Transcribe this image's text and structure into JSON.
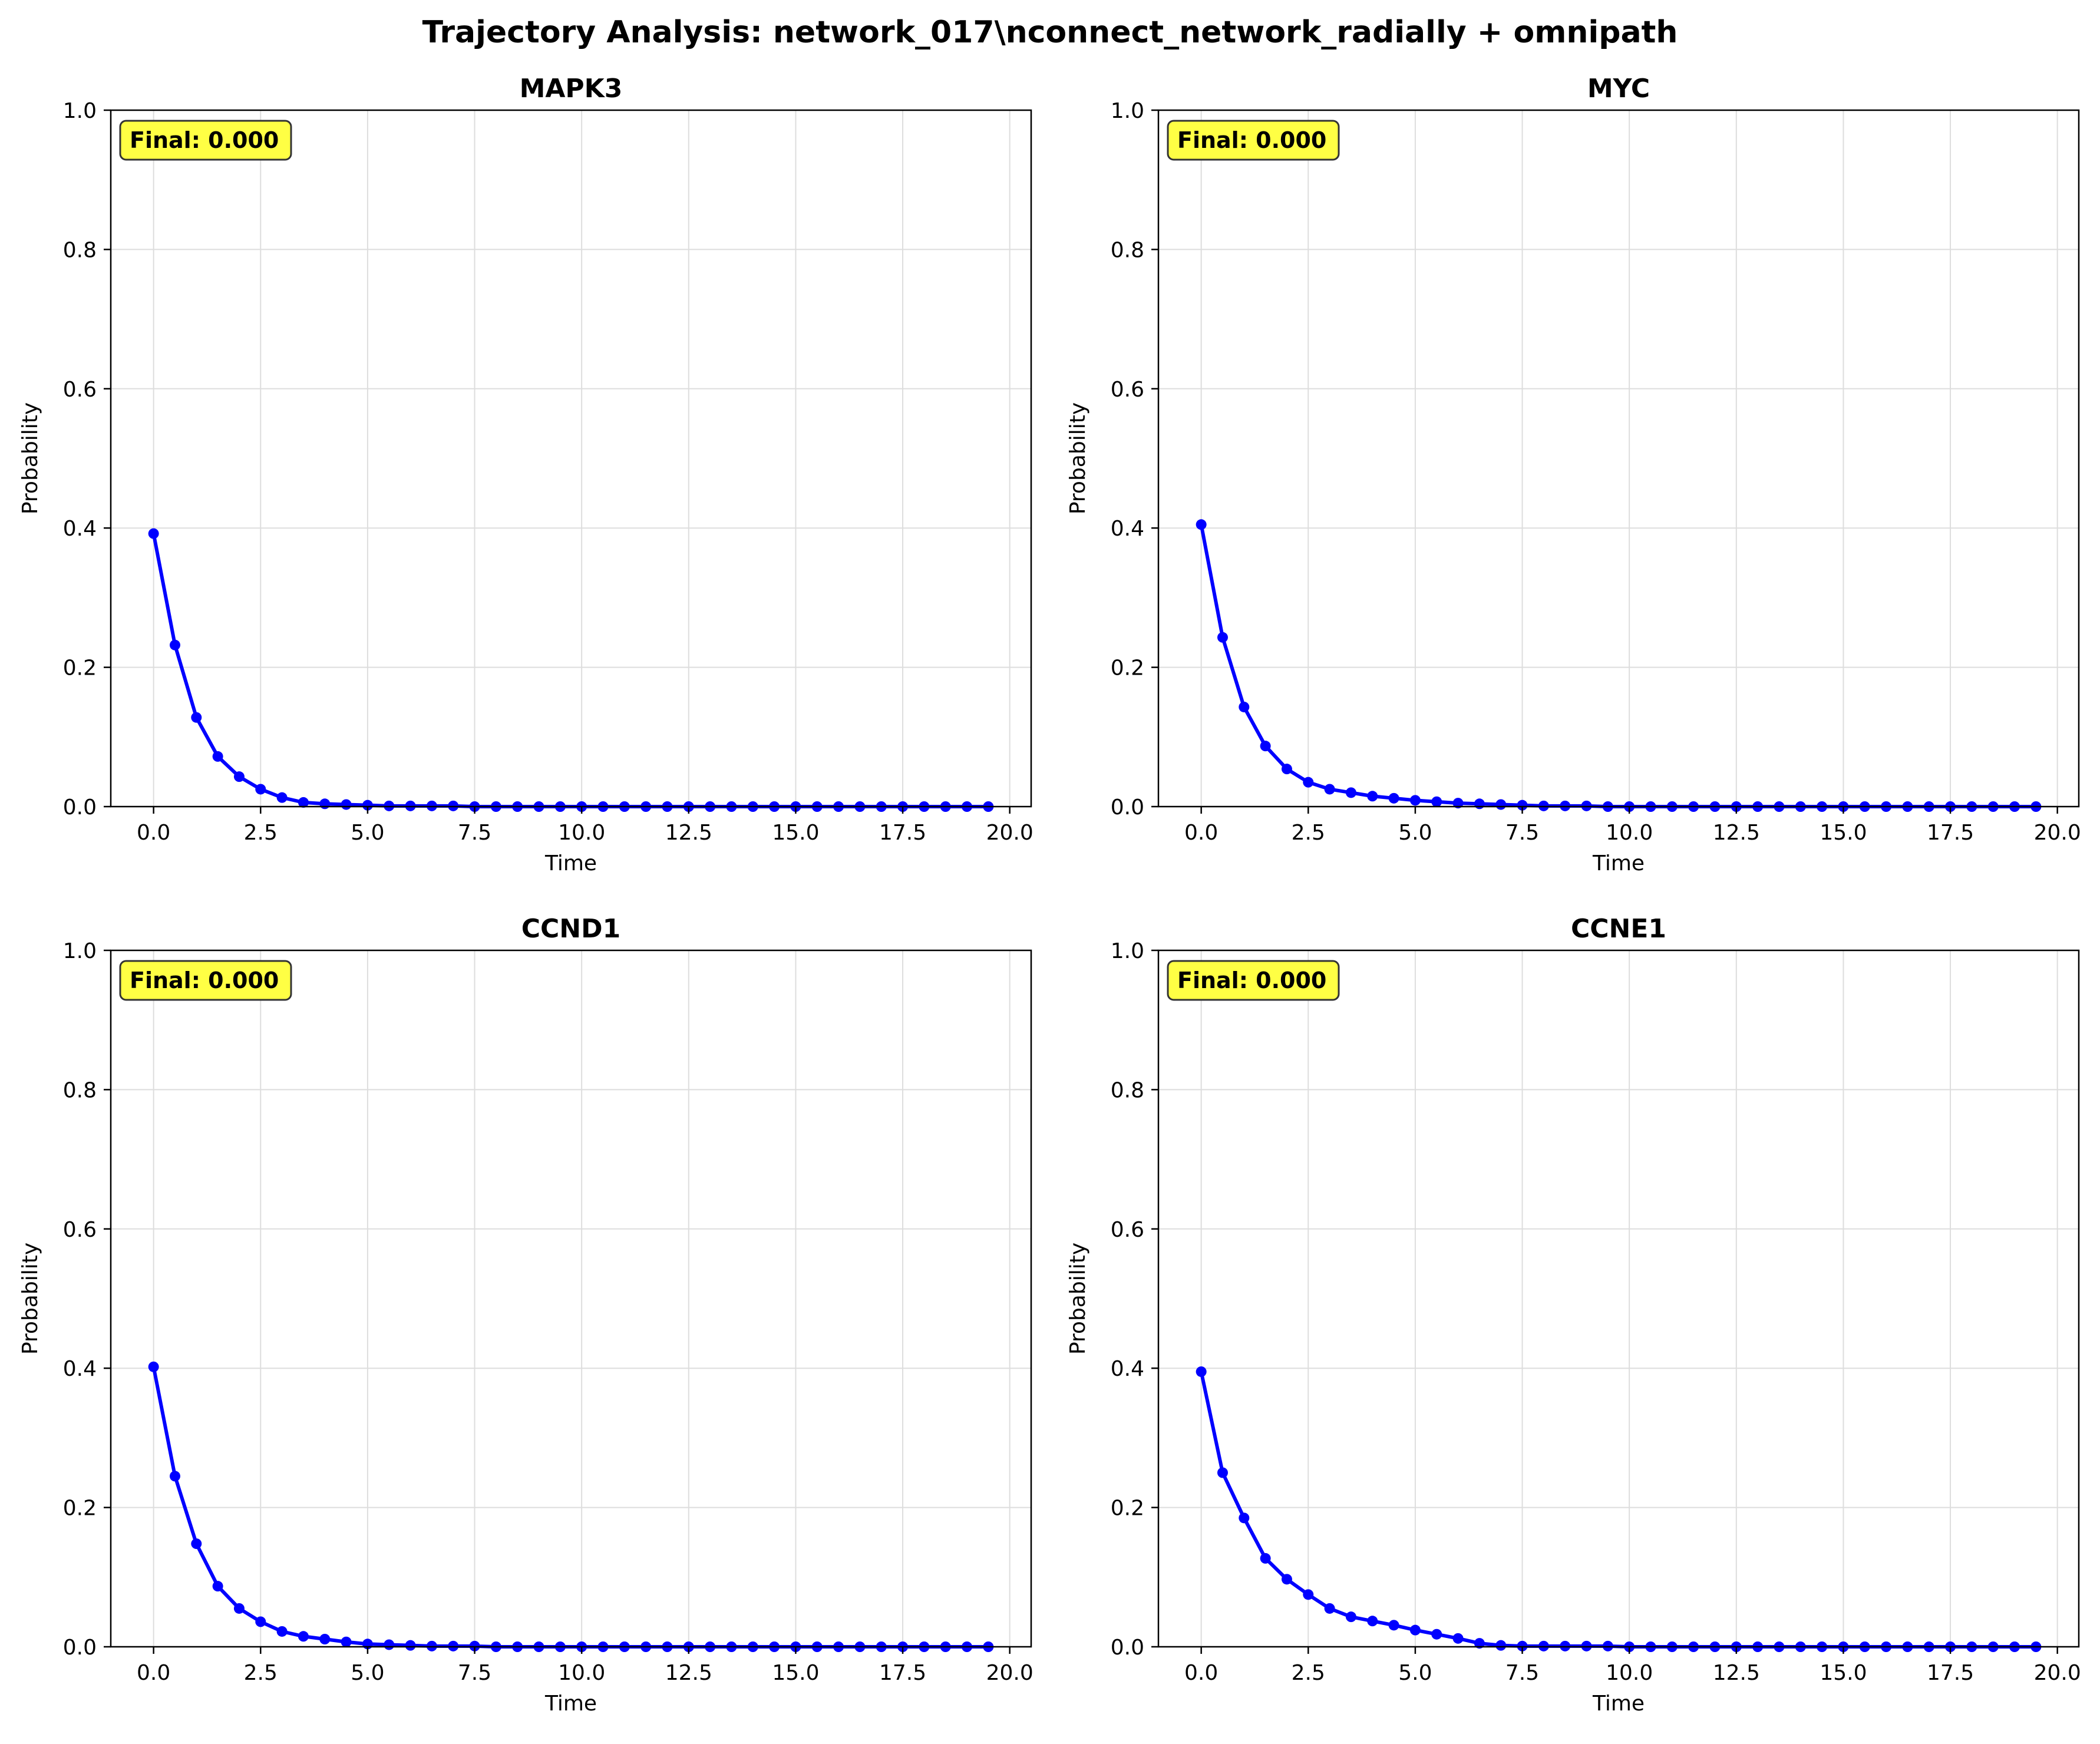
{
  "figure": {
    "title": "Trajectory Analysis: network_017\\nconnect_network_radially + omnipath"
  },
  "chart_data": [
    {
      "type": "line",
      "title": "MAPK3",
      "xlabel": "Time",
      "ylabel": "Probability",
      "xlim": [
        -1.0,
        20.5
      ],
      "ylim": [
        0,
        1
      ],
      "xticks": [
        "0.0",
        "2.5",
        "5.0",
        "7.5",
        "10.0",
        "12.5",
        "15.0",
        "17.5",
        "20.0"
      ],
      "yticks": [
        "0.0",
        "0.2",
        "0.4",
        "0.6",
        "0.8",
        "1.0"
      ],
      "grid": true,
      "annotation": "Final: 0.000",
      "series": [
        {
          "x": [
            0.0,
            0.5,
            1.0,
            1.5,
            2.0,
            2.5,
            3.0,
            3.5,
            4.0,
            4.5,
            5.0,
            5.5,
            6.0,
            6.5,
            7.0,
            7.5,
            8.0,
            8.5,
            9.0,
            9.5,
            10.0,
            10.5,
            11.0,
            11.5,
            12.0,
            12.5,
            13.0,
            13.5,
            14.0,
            14.5,
            15.0,
            15.5,
            16.0,
            16.5,
            17.0,
            17.5,
            18.0,
            18.5,
            19.0,
            19.5
          ],
          "y": [
            0.392,
            0.232,
            0.128,
            0.072,
            0.043,
            0.025,
            0.013,
            0.006,
            0.004,
            0.003,
            0.002,
            0.001,
            0.001,
            0.001,
            0.001,
            0,
            0,
            0,
            0,
            0,
            0,
            0,
            0,
            0,
            0,
            0,
            0,
            0,
            0,
            0,
            0,
            0,
            0,
            0,
            0,
            0,
            0,
            0,
            0,
            0
          ]
        }
      ]
    },
    {
      "type": "line",
      "title": "MYC",
      "xlabel": "Time",
      "ylabel": "Probability",
      "xlim": [
        -1.0,
        20.5
      ],
      "ylim": [
        0,
        1
      ],
      "xticks": [
        "0.0",
        "2.5",
        "5.0",
        "7.5",
        "10.0",
        "12.5",
        "15.0",
        "17.5",
        "20.0"
      ],
      "yticks": [
        "0.0",
        "0.2",
        "0.4",
        "0.6",
        "0.8",
        "1.0"
      ],
      "grid": true,
      "annotation": "Final: 0.000",
      "series": [
        {
          "x": [
            0.0,
            0.5,
            1.0,
            1.5,
            2.0,
            2.5,
            3.0,
            3.5,
            4.0,
            4.5,
            5.0,
            5.5,
            6.0,
            6.5,
            7.0,
            7.5,
            8.0,
            8.5,
            9.0,
            9.5,
            10.0,
            10.5,
            11.0,
            11.5,
            12.0,
            12.5,
            13.0,
            13.5,
            14.0,
            14.5,
            15.0,
            15.5,
            16.0,
            16.5,
            17.0,
            17.5,
            18.0,
            18.5,
            19.0,
            19.5
          ],
          "y": [
            0.405,
            0.243,
            0.143,
            0.087,
            0.054,
            0.035,
            0.025,
            0.02,
            0.015,
            0.012,
            0.009,
            0.007,
            0.005,
            0.004,
            0.003,
            0.002,
            0.001,
            0.001,
            0.001,
            0,
            0,
            0,
            0,
            0,
            0,
            0,
            0,
            0,
            0,
            0,
            0,
            0,
            0,
            0,
            0,
            0,
            0,
            0,
            0,
            0
          ]
        }
      ]
    },
    {
      "type": "line",
      "title": "CCND1",
      "xlabel": "Time",
      "ylabel": "Probability",
      "xlim": [
        -1.0,
        20.5
      ],
      "ylim": [
        0,
        1
      ],
      "xticks": [
        "0.0",
        "2.5",
        "5.0",
        "7.5",
        "10.0",
        "12.5",
        "15.0",
        "17.5",
        "20.0"
      ],
      "yticks": [
        "0.0",
        "0.2",
        "0.4",
        "0.6",
        "0.8",
        "1.0"
      ],
      "grid": true,
      "annotation": "Final: 0.000",
      "series": [
        {
          "x": [
            0.0,
            0.5,
            1.0,
            1.5,
            2.0,
            2.5,
            3.0,
            3.5,
            4.0,
            4.5,
            5.0,
            5.5,
            6.0,
            6.5,
            7.0,
            7.5,
            8.0,
            8.5,
            9.0,
            9.5,
            10.0,
            10.5,
            11.0,
            11.5,
            12.0,
            12.5,
            13.0,
            13.5,
            14.0,
            14.5,
            15.0,
            15.5,
            16.0,
            16.5,
            17.0,
            17.5,
            18.0,
            18.5,
            19.0,
            19.5
          ],
          "y": [
            0.402,
            0.245,
            0.148,
            0.087,
            0.055,
            0.036,
            0.022,
            0.015,
            0.011,
            0.007,
            0.004,
            0.003,
            0.002,
            0.001,
            0.001,
            0.001,
            0,
            0,
            0,
            0,
            0,
            0,
            0,
            0,
            0,
            0,
            0,
            0,
            0,
            0,
            0,
            0,
            0,
            0,
            0,
            0,
            0,
            0,
            0,
            0
          ]
        }
      ]
    },
    {
      "type": "line",
      "title": "CCNE1",
      "xlabel": "Time",
      "ylabel": "Probability",
      "xlim": [
        -1.0,
        20.5
      ],
      "ylim": [
        0,
        1
      ],
      "xticks": [
        "0.0",
        "2.5",
        "5.0",
        "7.5",
        "10.0",
        "12.5",
        "15.0",
        "17.5",
        "20.0"
      ],
      "yticks": [
        "0.0",
        "0.2",
        "0.4",
        "0.6",
        "0.8",
        "1.0"
      ],
      "grid": true,
      "annotation": "Final: 0.000",
      "series": [
        {
          "x": [
            0.0,
            0.5,
            1.0,
            1.5,
            2.0,
            2.5,
            3.0,
            3.5,
            4.0,
            4.5,
            5.0,
            5.5,
            6.0,
            6.5,
            7.0,
            7.5,
            8.0,
            8.5,
            9.0,
            9.5,
            10.0,
            10.5,
            11.0,
            11.5,
            12.0,
            12.5,
            13.0,
            13.5,
            14.0,
            14.5,
            15.0,
            15.5,
            16.0,
            16.5,
            17.0,
            17.5,
            18.0,
            18.5,
            19.0,
            19.5
          ],
          "y": [
            0.395,
            0.25,
            0.185,
            0.127,
            0.097,
            0.075,
            0.055,
            0.043,
            0.037,
            0.031,
            0.024,
            0.018,
            0.012,
            0.005,
            0.002,
            0.001,
            0.001,
            0.001,
            0.001,
            0.001,
            0,
            0,
            0,
            0,
            0,
            0,
            0,
            0,
            0,
            0,
            0,
            0,
            0,
            0,
            0,
            0,
            0,
            0,
            0,
            0
          ]
        }
      ]
    }
  ],
  "colors": {
    "line": "#0000ff",
    "grid": "#dddddd",
    "axis": "#000000",
    "annotation_bg": "#ffff44"
  }
}
